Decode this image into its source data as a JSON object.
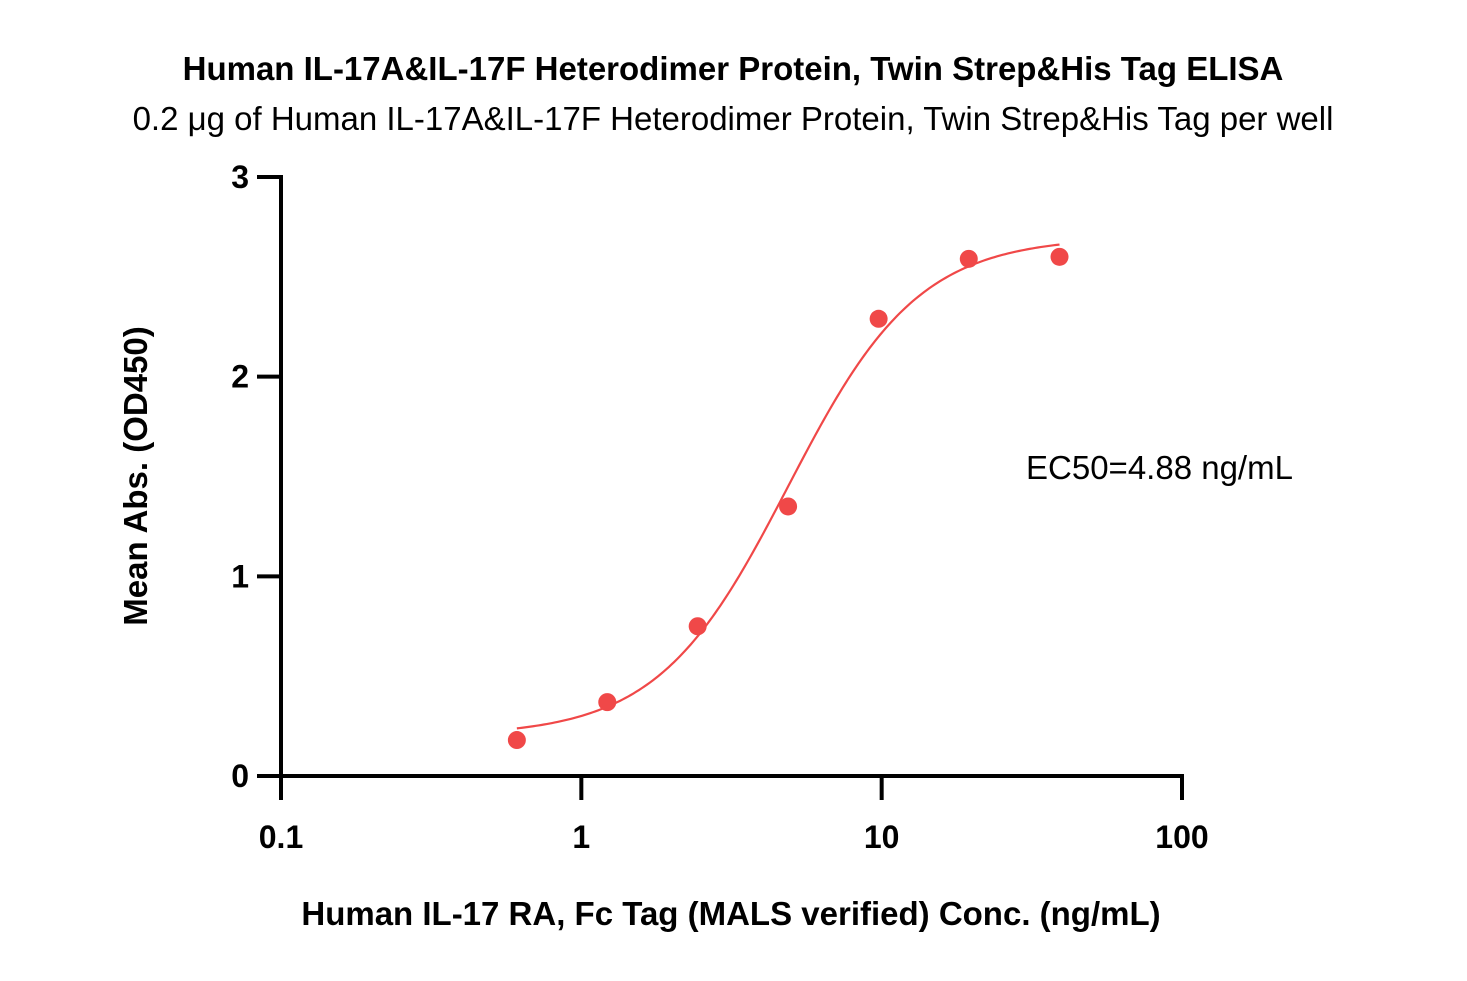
{
  "chart_data": {
    "type": "scatter",
    "title": "Human IL-17A&IL-17F Heterodimer Protein, Twin Strep&His Tag ELISA",
    "subtitle": "0.2 μg of Human IL-17A&IL-17F Heterodimer Protein, Twin Strep&His Tag per well",
    "xlabel": "Human IL-17 RA, Fc Tag (MALS verified) Conc. (ng/mL)",
    "ylabel": "Mean Abs. (OD450)",
    "x_scale": "log",
    "xlim": [
      0.1,
      100
    ],
    "ylim": [
      0,
      3
    ],
    "x_ticks": [
      0.1,
      1,
      10,
      100
    ],
    "x_tick_labels": [
      "0.1",
      "1",
      "10",
      "100"
    ],
    "y_ticks": [
      0,
      1,
      2,
      3
    ],
    "y_tick_labels": [
      "0",
      "1",
      "2",
      "3"
    ],
    "grid": false,
    "series_color": "#f04848",
    "points": [
      {
        "x": 0.61,
        "y": 0.18
      },
      {
        "x": 1.22,
        "y": 0.37
      },
      {
        "x": 2.44,
        "y": 0.75
      },
      {
        "x": 4.88,
        "y": 1.35
      },
      {
        "x": 9.77,
        "y": 2.29
      },
      {
        "x": 19.5,
        "y": 2.59
      },
      {
        "x": 39.1,
        "y": 2.6
      }
    ],
    "fit": {
      "model": "4PL",
      "bottom": 0.2,
      "top": 2.7,
      "ec50": 4.88,
      "hill": 2.0,
      "x_range": [
        0.61,
        39.1
      ]
    },
    "annotation": "EC50=4.88 ng/mL"
  }
}
